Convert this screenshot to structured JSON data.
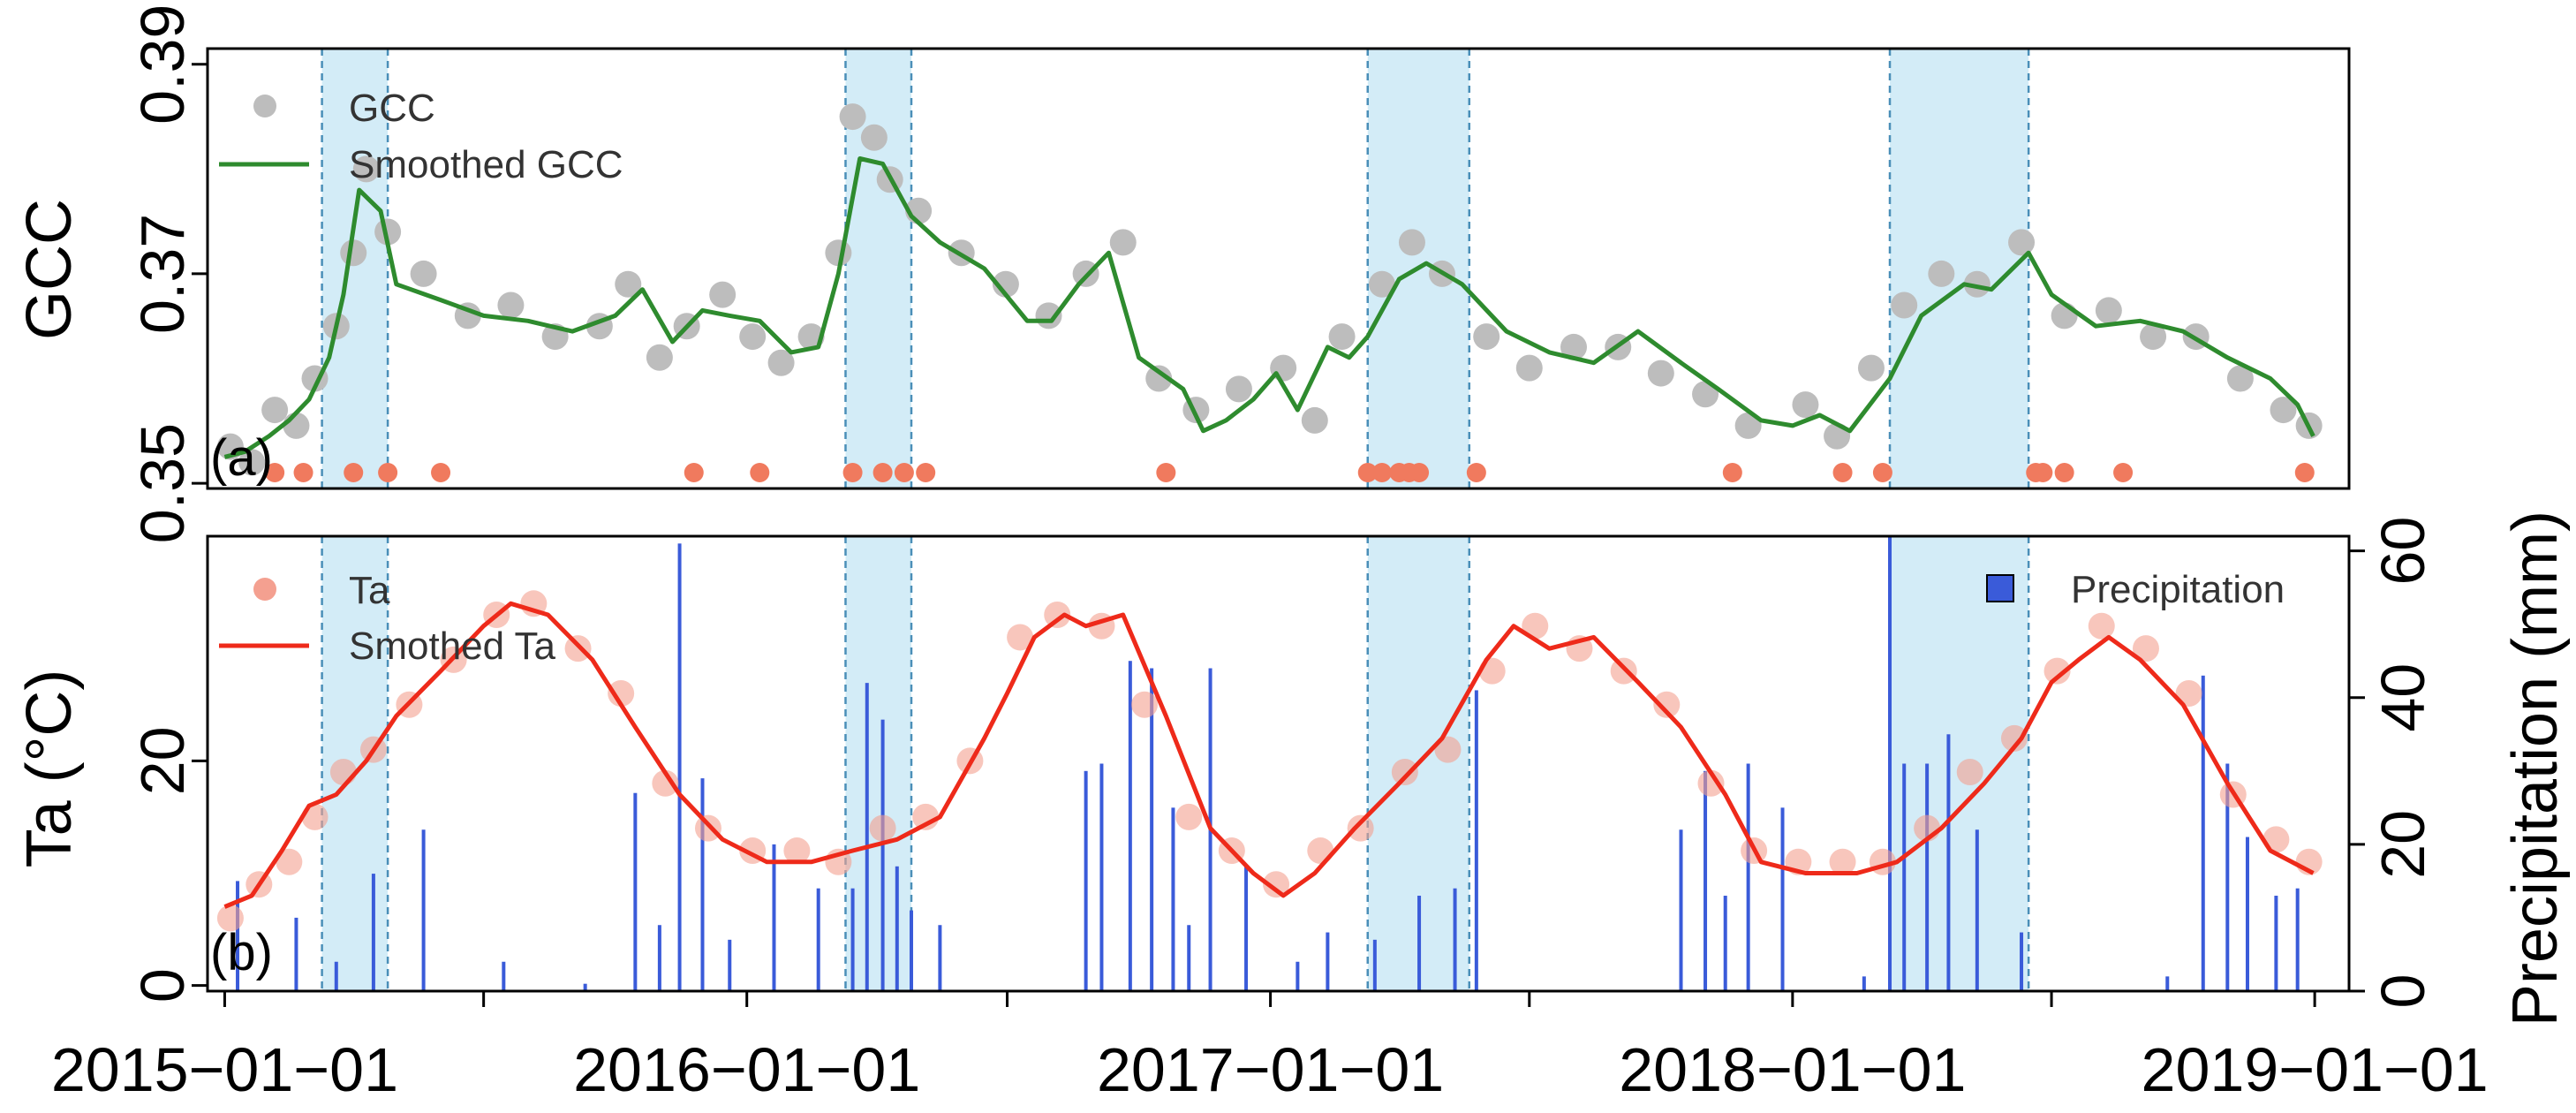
{
  "colors": {
    "gcc_points": "#bdbdbd",
    "gcc_smooth": "#2e8b2e",
    "events": "#f07a5e",
    "ta_points": "#f4a090",
    "ta_smooth": "#ee2a1a",
    "precip": "#3a5bd9",
    "shade": "#d3ecf7",
    "shade_border": "#4a8fb8"
  },
  "chart_data": [
    {
      "type": "scatter",
      "panel_label": "(a)",
      "ylabel": "GCC",
      "xlim": [
        "2014-12-20",
        "2019-01-25"
      ],
      "ylim": [
        0.3495,
        0.3915
      ],
      "yticks": [
        0.35,
        0.37,
        0.39
      ],
      "ytick_labels": [
        "0.35",
        "0.37",
        "0.39"
      ],
      "shaded_periods": [
        [
          "2015-03-10",
          "2015-04-25"
        ],
        [
          "2016-03-10",
          "2016-04-25"
        ],
        [
          "2017-03-10",
          "2017-05-20"
        ],
        [
          "2018-03-10",
          "2018-06-15"
        ]
      ],
      "legend": {
        "position": "top-left",
        "entries": [
          "GCC",
          "Smoothed GCC"
        ]
      },
      "series": [
        {
          "name": "Smoothed GCC",
          "x": [
            "2015-01-01",
            "2015-01-15",
            "2015-02-01",
            "2015-02-15",
            "2015-03-01",
            "2015-03-15",
            "2015-03-25",
            "2015-04-05",
            "2015-04-20",
            "2015-05-01",
            "2015-06-01",
            "2015-07-01",
            "2015-08-01",
            "2015-09-01",
            "2015-10-01",
            "2015-10-20",
            "2015-11-10",
            "2015-12-01",
            "2015-12-20",
            "2016-01-10",
            "2016-02-01",
            "2016-02-20",
            "2016-03-05",
            "2016-03-20",
            "2016-04-05",
            "2016-04-25",
            "2016-05-15",
            "2016-06-15",
            "2016-07-15",
            "2016-08-01",
            "2016-08-20",
            "2016-09-10",
            "2016-10-01",
            "2016-11-01",
            "2016-11-15",
            "2016-12-01",
            "2016-12-20",
            "2017-01-05",
            "2017-01-20",
            "2017-02-10",
            "2017-02-25",
            "2017-03-10",
            "2017-04-01",
            "2017-04-20",
            "2017-05-15",
            "2017-06-15",
            "2017-07-15",
            "2017-08-15",
            "2017-09-15",
            "2017-10-15",
            "2017-11-10",
            "2017-11-25",
            "2017-12-10",
            "2018-01-01",
            "2018-01-20",
            "2018-02-10",
            "2018-03-10",
            "2018-04-01",
            "2018-05-01",
            "2018-05-20",
            "2018-06-15",
            "2018-07-01",
            "2018-08-01",
            "2018-09-01",
            "2018-10-01",
            "2018-11-01",
            "2018-12-01",
            "2018-12-20",
            "2018-12-31"
          ],
          "y": [
            0.3525,
            0.353,
            0.3545,
            0.356,
            0.358,
            0.362,
            0.368,
            0.378,
            0.376,
            0.369,
            0.3675,
            0.366,
            0.3655,
            0.3645,
            0.366,
            0.3685,
            0.3635,
            0.3665,
            0.366,
            0.3655,
            0.3625,
            0.363,
            0.37,
            0.381,
            0.3805,
            0.3755,
            0.373,
            0.3705,
            0.3655,
            0.3655,
            0.369,
            0.372,
            0.362,
            0.359,
            0.355,
            0.356,
            0.358,
            0.3605,
            0.357,
            0.363,
            0.362,
            0.364,
            0.3695,
            0.371,
            0.369,
            0.3645,
            0.3625,
            0.3615,
            0.3645,
            0.3615,
            0.359,
            0.3575,
            0.356,
            0.3555,
            0.3565,
            0.355,
            0.36,
            0.366,
            0.369,
            0.3685,
            0.372,
            0.368,
            0.365,
            0.3655,
            0.3645,
            0.362,
            0.36,
            0.3575,
            0.3545
          ]
        },
        {
          "name": "GCC",
          "x": [
            "2015-01-05",
            "2015-01-20",
            "2015-02-05",
            "2015-02-20",
            "2015-03-05",
            "2015-03-20",
            "2015-04-01",
            "2015-04-10",
            "2015-04-25",
            "2015-05-20",
            "2015-06-20",
            "2015-07-20",
            "2015-08-20",
            "2015-09-20",
            "2015-10-10",
            "2015-11-01",
            "2015-11-20",
            "2015-12-15",
            "2016-01-05",
            "2016-01-25",
            "2016-02-15",
            "2016-03-05",
            "2016-03-15",
            "2016-03-30",
            "2016-04-10",
            "2016-04-30",
            "2016-05-30",
            "2016-06-30",
            "2016-07-30",
            "2016-08-25",
            "2016-09-20",
            "2016-10-15",
            "2016-11-10",
            "2016-12-10",
            "2017-01-10",
            "2017-02-01",
            "2017-02-20",
            "2017-03-20",
            "2017-04-10",
            "2017-05-01",
            "2017-06-01",
            "2017-07-01",
            "2017-08-01",
            "2017-09-01",
            "2017-10-01",
            "2017-11-01",
            "2017-12-01",
            "2018-01-10",
            "2018-02-01",
            "2018-02-25",
            "2018-03-20",
            "2018-04-15",
            "2018-05-10",
            "2018-06-10",
            "2018-07-10",
            "2018-08-10",
            "2018-09-10",
            "2018-10-10",
            "2018-11-10",
            "2018-12-10",
            "2018-12-28"
          ],
          "y": [
            0.3535,
            0.352,
            0.357,
            0.3555,
            0.36,
            0.365,
            0.372,
            0.38,
            0.374,
            0.37,
            0.366,
            0.367,
            0.364,
            0.365,
            0.369,
            0.362,
            0.365,
            0.368,
            0.364,
            0.3615,
            0.364,
            0.372,
            0.385,
            0.383,
            0.379,
            0.376,
            0.372,
            0.369,
            0.366,
            0.37,
            0.373,
            0.36,
            0.357,
            0.359,
            0.361,
            0.356,
            0.364,
            0.369,
            0.373,
            0.37,
            0.364,
            0.361,
            0.363,
            0.363,
            0.3605,
            0.3585,
            0.3555,
            0.3575,
            0.3545,
            0.361,
            0.367,
            0.37,
            0.369,
            0.373,
            0.366,
            0.3665,
            0.364,
            0.364,
            0.36,
            0.357,
            0.3555
          ]
        }
      ],
      "events": [
        "2015-02-05",
        "2015-02-25",
        "2015-04-01",
        "2015-04-25",
        "2015-06-01",
        "2015-11-25",
        "2016-01-10",
        "2016-03-15",
        "2016-04-05",
        "2016-04-20",
        "2016-05-05",
        "2016-10-20",
        "2017-03-10",
        "2017-03-20",
        "2017-04-01",
        "2017-04-08",
        "2017-04-15",
        "2017-05-25",
        "2017-11-20",
        "2018-02-05",
        "2018-03-05",
        "2018-06-20",
        "2018-06-25",
        "2018-07-10",
        "2018-08-20",
        "2018-12-25"
      ]
    },
    {
      "type": "line",
      "panel_label": "(b)",
      "ylabel": "Ta (°C)",
      "y2label": "Precipitation (mm)",
      "xlim": [
        "2014-12-20",
        "2019-01-25"
      ],
      "ylim": [
        -0.5,
        40
      ],
      "y2lim": [
        0,
        62
      ],
      "yticks": [
        0,
        20
      ],
      "ytick_labels": [
        "0",
        "20"
      ],
      "y2ticks": [
        0,
        20,
        40,
        60
      ],
      "y2tick_labels": [
        "0",
        "20",
        "40",
        "60"
      ],
      "xticks": [
        "2015-01-01",
        "2015-07-01",
        "2016-01-01",
        "2016-07-01",
        "2017-01-01",
        "2017-07-01",
        "2018-01-01",
        "2018-07-01",
        "2019-01-01"
      ],
      "xtick_labels": [
        "2015−01−01",
        "",
        "2016−01−01",
        "",
        "2017−01−01",
        "",
        "2018−01−01",
        "",
        "2019−01−01"
      ],
      "legend": {
        "position": "top-left",
        "entries": [
          "Ta",
          "Smothed Ta"
        ]
      },
      "legend2": {
        "position": "top-right",
        "entries": [
          "Precipitation"
        ]
      },
      "series": [
        {
          "name": "Smothed Ta",
          "x": [
            "2015-01-01",
            "2015-01-20",
            "2015-02-10",
            "2015-03-01",
            "2015-03-20",
            "2015-04-10",
            "2015-05-01",
            "2015-06-01",
            "2015-07-01",
            "2015-07-20",
            "2015-08-15",
            "2015-09-15",
            "2015-10-15",
            "2015-11-15",
            "2015-12-15",
            "2016-01-15",
            "2016-02-15",
            "2016-03-15",
            "2016-04-15",
            "2016-05-15",
            "2016-06-15",
            "2016-07-01",
            "2016-07-20",
            "2016-08-10",
            "2016-08-25",
            "2016-09-20",
            "2016-10-20",
            "2016-11-20",
            "2016-12-20",
            "2017-01-10",
            "2017-02-01",
            "2017-03-01",
            "2017-04-01",
            "2017-05-01",
            "2017-06-01",
            "2017-06-20",
            "2017-07-15",
            "2017-08-15",
            "2017-09-15",
            "2017-10-15",
            "2017-11-15",
            "2017-12-10",
            "2018-01-10",
            "2018-02-15",
            "2018-03-15",
            "2018-04-15",
            "2018-05-15",
            "2018-06-10",
            "2018-07-01",
            "2018-07-20",
            "2018-08-10",
            "2018-09-01",
            "2018-10-01",
            "2018-11-01",
            "2018-12-01",
            "2018-12-31"
          ],
          "y": [
            7,
            8,
            12,
            16,
            17,
            20,
            24,
            28,
            32,
            34,
            33,
            29,
            23,
            17,
            13,
            11,
            11,
            12,
            13,
            15,
            22,
            26,
            31,
            33,
            32,
            33,
            24,
            14,
            10,
            8,
            10,
            14,
            18,
            22,
            29,
            32,
            30,
            31,
            27,
            23,
            17,
            11,
            10,
            10,
            11,
            14,
            18,
            22,
            27,
            29,
            31,
            29,
            25,
            18,
            12,
            10
          ]
        },
        {
          "name": "Ta",
          "x": [
            "2015-01-05",
            "2015-01-25",
            "2015-02-15",
            "2015-03-05",
            "2015-03-25",
            "2015-04-15",
            "2015-05-10",
            "2015-06-10",
            "2015-07-10",
            "2015-08-05",
            "2015-09-05",
            "2015-10-05",
            "2015-11-05",
            "2015-12-05",
            "2016-01-05",
            "2016-02-05",
            "2016-03-05",
            "2016-04-05",
            "2016-05-05",
            "2016-06-05",
            "2016-07-10",
            "2016-08-05",
            "2016-09-05",
            "2016-10-05",
            "2016-11-05",
            "2016-12-05",
            "2017-01-05",
            "2017-02-05",
            "2017-03-05",
            "2017-04-05",
            "2017-05-05",
            "2017-06-05",
            "2017-07-05",
            "2017-08-05",
            "2017-09-05",
            "2017-10-05",
            "2017-11-05",
            "2017-12-05",
            "2018-01-05",
            "2018-02-05",
            "2018-03-05",
            "2018-04-05",
            "2018-05-05",
            "2018-06-05",
            "2018-07-05",
            "2018-08-05",
            "2018-09-05",
            "2018-10-05",
            "2018-11-05",
            "2018-12-05",
            "2018-12-28"
          ],
          "y": [
            6,
            9,
            11,
            15,
            19,
            21,
            25,
            29,
            33,
            34,
            30,
            26,
            18,
            14,
            12,
            12,
            11,
            14,
            15,
            20,
            31,
            33,
            32,
            25,
            15,
            12,
            9,
            12,
            14,
            19,
            21,
            28,
            32,
            30,
            28,
            25,
            18,
            12,
            11,
            11,
            11,
            14,
            19,
            22,
            28,
            32,
            30,
            26,
            17,
            13,
            11
          ]
        },
        {
          "name": "Precipitation",
          "x": [
            "2015-01-10",
            "2015-02-20",
            "2015-03-20",
            "2015-04-15",
            "2015-05-20",
            "2015-07-15",
            "2015-09-10",
            "2015-10-15",
            "2015-11-01",
            "2015-11-15",
            "2015-12-01",
            "2015-12-20",
            "2016-01-20",
            "2016-02-20",
            "2016-03-15",
            "2016-03-25",
            "2016-04-05",
            "2016-04-15",
            "2016-04-25",
            "2016-05-15",
            "2016-08-25",
            "2016-09-05",
            "2016-09-25",
            "2016-10-10",
            "2016-10-25",
            "2016-11-05",
            "2016-11-20",
            "2016-12-15",
            "2017-01-20",
            "2017-02-10",
            "2017-03-15",
            "2017-04-15",
            "2017-05-10",
            "2017-05-25",
            "2017-10-15",
            "2017-11-01",
            "2017-11-15",
            "2017-12-01",
            "2017-12-25",
            "2018-02-20",
            "2018-03-10",
            "2018-03-20",
            "2018-04-05",
            "2018-04-20",
            "2018-05-10",
            "2018-06-10",
            "2018-09-20",
            "2018-10-15",
            "2018-11-01",
            "2018-11-15",
            "2018-12-05",
            "2018-12-20"
          ],
          "y": [
            15,
            10,
            4,
            16,
            22,
            4,
            1,
            27,
            9,
            61,
            29,
            7,
            20,
            14,
            14,
            42,
            37,
            17,
            11,
            9,
            30,
            31,
            45,
            44,
            25,
            9,
            44,
            17,
            4,
            8,
            7,
            13,
            14,
            41,
            22,
            30,
            13,
            31,
            25,
            2,
            62,
            31,
            31,
            35,
            22,
            8,
            2,
            43,
            31,
            21,
            13,
            14
          ]
        }
      ]
    }
  ]
}
